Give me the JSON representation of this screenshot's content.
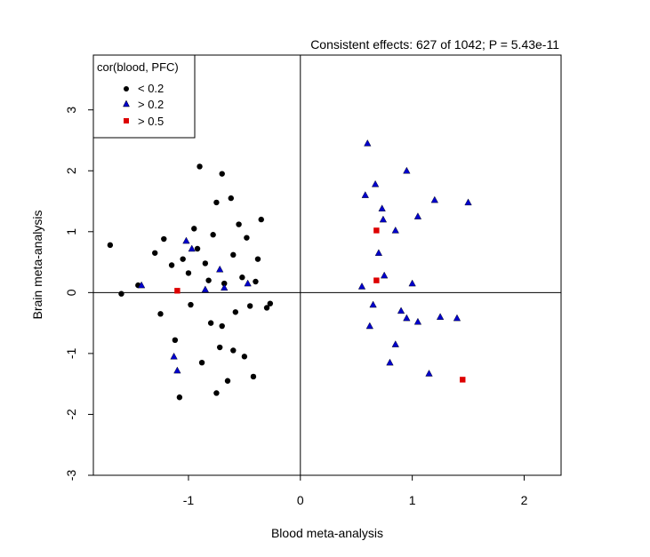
{
  "chart_data": {
    "type": "scatter",
    "title": "Consistent effects: 627 of 1042; P = 5.43e-11",
    "xlabel": "Blood meta-analysis",
    "ylabel": "Brain meta-analysis",
    "xlim": [
      -1.85,
      2.33
    ],
    "ylim": [
      -3.0,
      3.9
    ],
    "x_ticks": [
      -1,
      0,
      1,
      2
    ],
    "y_ticks": [
      -3,
      -2,
      -1,
      0,
      1,
      2,
      3
    ],
    "reference_lines": {
      "x": 0,
      "y": 0
    },
    "grid": false,
    "legend": {
      "title": "cor(blood, PFC)",
      "placement": "top-left",
      "entries": [
        "< 0.2",
        "> 0.2",
        "> 0.5"
      ]
    },
    "colors": {
      "low": "#000000",
      "mid": "#0000cc",
      "high": "#dd0000"
    },
    "series": [
      {
        "name": "< 0.2",
        "marker": "circle",
        "points": [
          [
            -1.7,
            0.78
          ],
          [
            -1.6,
            -0.02
          ],
          [
            -1.45,
            0.12
          ],
          [
            -1.3,
            0.65
          ],
          [
            -1.25,
            -0.35
          ],
          [
            -1.22,
            0.88
          ],
          [
            -1.15,
            0.45
          ],
          [
            -1.12,
            -0.78
          ],
          [
            -1.08,
            -1.72
          ],
          [
            -1.05,
            0.55
          ],
          [
            -1.0,
            0.32
          ],
          [
            -0.98,
            -0.2
          ],
          [
            -0.95,
            1.05
          ],
          [
            -0.92,
            0.72
          ],
          [
            -0.9,
            2.07
          ],
          [
            -0.88,
            -1.15
          ],
          [
            -0.85,
            0.48
          ],
          [
            -0.8,
            -0.5
          ],
          [
            -0.78,
            0.95
          ],
          [
            -0.75,
            1.48
          ],
          [
            -0.72,
            -0.9
          ],
          [
            -0.7,
            1.95
          ],
          [
            -0.68,
            0.15
          ],
          [
            -0.65,
            -1.45
          ],
          [
            -0.62,
            1.55
          ],
          [
            -0.6,
            0.62
          ],
          [
            -0.58,
            -0.32
          ],
          [
            -0.55,
            1.12
          ],
          [
            -0.52,
            0.25
          ],
          [
            -0.5,
            -1.05
          ],
          [
            -0.48,
            0.9
          ],
          [
            -0.45,
            -0.22
          ],
          [
            -0.42,
            -1.38
          ],
          [
            -0.4,
            0.18
          ],
          [
            -0.38,
            0.55
          ],
          [
            -0.3,
            -0.25
          ],
          [
            -0.27,
            -0.18
          ],
          [
            -0.35,
            1.2
          ],
          [
            -0.6,
            -0.95
          ],
          [
            -0.75,
            -1.65
          ],
          [
            -0.82,
            0.2
          ],
          [
            -0.7,
            -0.55
          ]
        ]
      },
      {
        "name": "> 0.2",
        "marker": "triangle",
        "points": [
          [
            -1.42,
            0.12
          ],
          [
            -1.13,
            -1.05
          ],
          [
            -1.1,
            -1.28
          ],
          [
            -1.02,
            0.85
          ],
          [
            -0.97,
            0.72
          ],
          [
            -0.85,
            0.05
          ],
          [
            -0.72,
            0.38
          ],
          [
            -0.68,
            0.08
          ],
          [
            -0.47,
            0.15
          ],
          [
            0.6,
            2.45
          ],
          [
            0.58,
            1.6
          ],
          [
            0.67,
            1.78
          ],
          [
            0.73,
            1.38
          ],
          [
            0.74,
            1.2
          ],
          [
            0.85,
            1.02
          ],
          [
            0.95,
            2.0
          ],
          [
            1.05,
            1.25
          ],
          [
            1.2,
            1.52
          ],
          [
            1.5,
            1.48
          ],
          [
            0.55,
            0.1
          ],
          [
            0.65,
            -0.2
          ],
          [
            0.75,
            0.28
          ],
          [
            0.9,
            -0.3
          ],
          [
            0.95,
            -0.42
          ],
          [
            1.05,
            -0.48
          ],
          [
            1.25,
            -0.4
          ],
          [
            1.4,
            -0.42
          ],
          [
            1.15,
            -1.33
          ],
          [
            0.8,
            -1.15
          ],
          [
            0.62,
            -0.55
          ],
          [
            1.0,
            0.15
          ],
          [
            0.7,
            0.65
          ],
          [
            0.85,
            -0.85
          ]
        ]
      },
      {
        "name": "> 0.5",
        "marker": "square",
        "points": [
          [
            -1.1,
            0.03
          ],
          [
            0.68,
            0.2
          ],
          [
            0.68,
            1.02
          ],
          [
            1.45,
            -1.43
          ]
        ]
      }
    ]
  }
}
